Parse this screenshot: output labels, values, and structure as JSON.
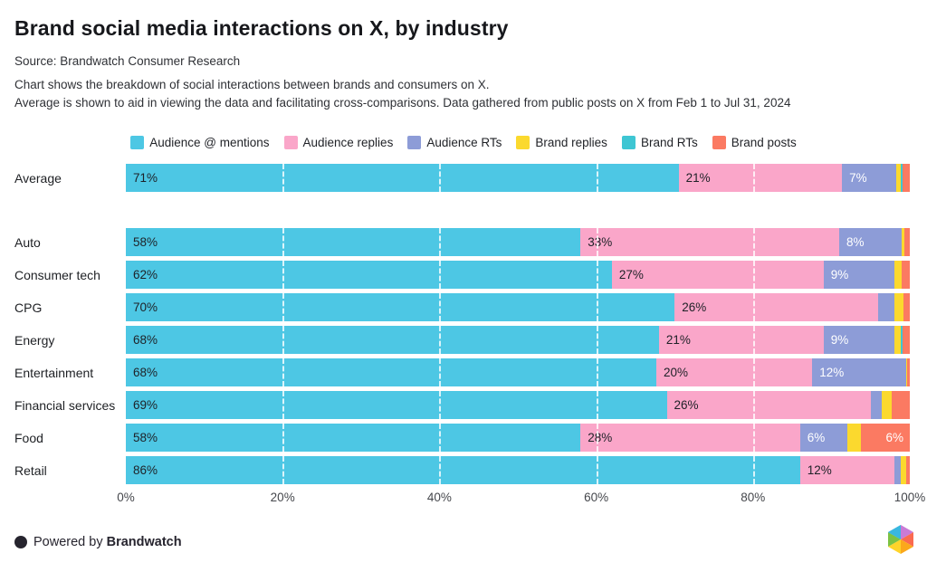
{
  "header": {
    "title": "Brand social media interactions on X, by industry",
    "source": "Source: Brandwatch Consumer Research",
    "description_line1": "Chart shows the breakdown of social interactions between brands and consumers on X.",
    "description_line2": "Average is shown to aid in viewing the data and facilitating cross-comparisons. Data gathered from public posts on X from Feb 1 to Jul 31, 2024"
  },
  "chart_data": {
    "type": "bar",
    "orientation": "horizontal",
    "stacked": true,
    "unit": "percent",
    "xlim": [
      0,
      100
    ],
    "grid": true,
    "gridlines": [
      20,
      40,
      60,
      80
    ],
    "legend_position": "top-center",
    "series": [
      {
        "name": "Audience @ mentions",
        "color": "#4DC7E4",
        "label_color": "#1e2127"
      },
      {
        "name": "Audience replies",
        "color": "#FAA6C9",
        "label_color": "#1e2127"
      },
      {
        "name": "Audience RTs",
        "color": "#8D9CD7",
        "label_color": "#ffffff"
      },
      {
        "name": "Brand replies",
        "color": "#FBD92E",
        "label_color": "#1e2127"
      },
      {
        "name": "Brand RTs",
        "color": "#3EC6D3",
        "label_color": "#ffffff"
      },
      {
        "name": "Brand posts",
        "color": "#FB7A62",
        "label_color": "#ffffff"
      }
    ],
    "categories": [
      "Average",
      "Auto",
      "Consumer tech",
      "CPG",
      "Energy",
      "Entertainment",
      "Financial services",
      "Food",
      "Retail"
    ],
    "rows": [
      {
        "category": "Average",
        "gap_after": true,
        "values": [
          71,
          21,
          7,
          0.5,
          0.3,
          0.9
        ],
        "labels": [
          "71%",
          "21%",
          "7%",
          "",
          "",
          ""
        ]
      },
      {
        "category": "Auto",
        "gap_after": false,
        "values": [
          58,
          33,
          8,
          0.3,
          0,
          0.7
        ],
        "labels": [
          "58%",
          "33%",
          "8%",
          "",
          "",
          ""
        ]
      },
      {
        "category": "Consumer tech",
        "gap_after": false,
        "values": [
          62,
          27,
          9,
          1,
          0,
          1
        ],
        "labels": [
          "62%",
          "27%",
          "9%",
          "",
          "",
          ""
        ]
      },
      {
        "category": "CPG",
        "gap_after": false,
        "values": [
          70,
          26,
          2,
          1.2,
          0,
          0.8
        ],
        "labels": [
          "70%",
          "26%",
          "",
          "",
          "",
          ""
        ]
      },
      {
        "category": "Energy",
        "gap_after": false,
        "values": [
          68,
          21,
          9,
          0.8,
          0.3,
          0.9
        ],
        "labels": [
          "68%",
          "21%",
          "9%",
          "",
          "",
          ""
        ]
      },
      {
        "category": "Entertainment",
        "gap_after": false,
        "values": [
          68,
          20,
          12,
          0.2,
          0,
          0.3
        ],
        "labels": [
          "68%",
          "20%",
          "12%",
          "",
          "",
          ""
        ]
      },
      {
        "category": "Financial services",
        "gap_after": false,
        "values": [
          69,
          26,
          1.4,
          1.3,
          0,
          2.3
        ],
        "labels": [
          "69%",
          "26%",
          "",
          "",
          "",
          ""
        ]
      },
      {
        "category": "Food",
        "gap_after": false,
        "values": [
          58,
          28,
          6,
          1.8,
          0,
          6.2
        ],
        "labels": [
          "58%",
          "28%",
          "6%",
          "",
          "",
          "6%"
        ]
      },
      {
        "category": "Retail",
        "gap_after": false,
        "values": [
          86,
          12,
          0.9,
          0.7,
          0,
          0.4
        ],
        "labels": [
          "86%",
          "12%",
          "",
          "",
          "",
          ""
        ]
      }
    ],
    "x_ticks": [
      {
        "label": "0%",
        "pos": 0
      },
      {
        "label": "20%",
        "pos": 20
      },
      {
        "label": "40%",
        "pos": 40
      },
      {
        "label": "60%",
        "pos": 60
      },
      {
        "label": "80%",
        "pos": 80
      },
      {
        "label": "100%",
        "pos": 100
      }
    ]
  },
  "footer": {
    "powered_by": "Powered by",
    "brand": "Brandwatch",
    "logo_colors": [
      "#39B7E0",
      "#C97BD6",
      "#FA6A50",
      "#FBA81C",
      "#FFD42A",
      "#7DC243"
    ]
  }
}
